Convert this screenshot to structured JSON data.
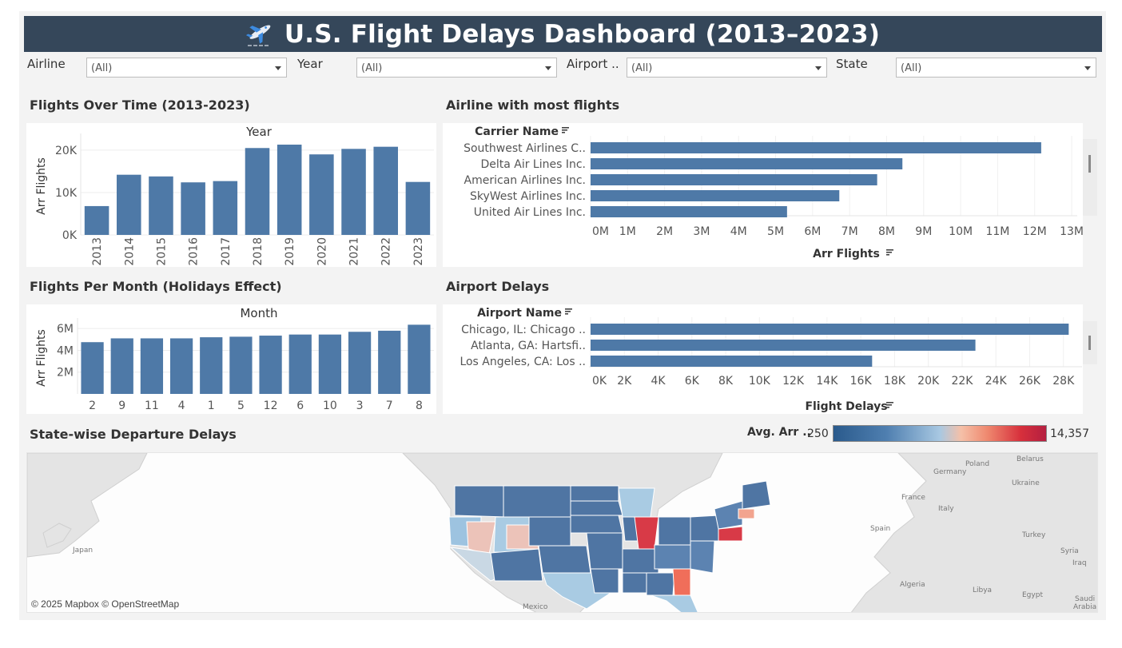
{
  "header": {
    "title": "U.S. Flight Delays Dashboard (2013–2023)",
    "icon": "airplane-icon"
  },
  "filters": [
    {
      "label": "Airline",
      "value": "(All)"
    },
    {
      "label": "Year",
      "value": "(All)"
    },
    {
      "label": "Airport ..",
      "value": "(All)"
    },
    {
      "label": "State",
      "value": "(All)"
    }
  ],
  "panels": {
    "flights_over_time": {
      "title": "Flights Over Time (2013-2023)"
    },
    "airline_most_flights": {
      "title": "Airline with most flights"
    },
    "flights_per_month": {
      "title": "Flights Per Month (Holidays Effect)"
    },
    "airport_delays": {
      "title": "Airport Delays"
    },
    "state_delays": {
      "title": "State-wise Departure Delays"
    }
  },
  "map": {
    "legend_label": "Avg. Arr ..",
    "legend_min": "250",
    "legend_max": "14,357",
    "attribution": "© 2025 Mapbox © OpenStreetMap",
    "places": [
      "Japan",
      "Mexico",
      "Poland",
      "Belarus",
      "Germany",
      "Ukraine",
      "France",
      "Italy",
      "Spain",
      "Turkey",
      "Syria",
      "Iraq",
      "Algeria",
      "Libya",
      "Egypt",
      "Saudi",
      "Arabia"
    ],
    "colors": {
      "low": "#2a5a8c",
      "mid": "#a8c8e2",
      "high": "#b41f40"
    }
  },
  "chart_data": [
    {
      "type": "bar",
      "title": "Year",
      "ylabel": "Arr Flights",
      "categories": [
        "2013",
        "2014",
        "2015",
        "2016",
        "2017",
        "2018",
        "2019",
        "2020",
        "2021",
        "2022",
        "2023"
      ],
      "values": [
        6800,
        14200,
        13800,
        12400,
        12700,
        20500,
        21300,
        19000,
        20300,
        20800,
        12500
      ],
      "ylim": [
        0,
        23000
      ],
      "yticks": [
        "0K",
        "10K",
        "20K"
      ],
      "ytick_values": [
        0,
        10000,
        20000
      ],
      "color": "#4e79a7"
    },
    {
      "type": "bar",
      "orientation": "horizontal",
      "category_title": "Carrier Name",
      "xlabel": "Arr Flights",
      "categories": [
        "Southwest Airlines C..",
        "Delta Air Lines Inc.",
        "American Airlines Inc.",
        "SkyWest Airlines Inc.",
        "United Air Lines Inc."
      ],
      "values": [
        12500000,
        8650000,
        7950000,
        6900000,
        5450000
      ],
      "xlim": [
        0,
        13500000
      ],
      "xticks": [
        "0M",
        "1M",
        "2M",
        "3M",
        "4M",
        "5M",
        "6M",
        "7M",
        "8M",
        "9M",
        "10M",
        "11M",
        "12M",
        "13M"
      ],
      "color": "#4e79a7"
    },
    {
      "type": "bar",
      "title": "Month",
      "ylabel": "Arr Flights",
      "categories": [
        "2",
        "9",
        "11",
        "4",
        "1",
        "5",
        "12",
        "6",
        "10",
        "3",
        "7",
        "8"
      ],
      "values": [
        4750000,
        5100000,
        5100000,
        5100000,
        5200000,
        5250000,
        5350000,
        5450000,
        5450000,
        5700000,
        5800000,
        6350000
      ],
      "ylim": [
        0,
        6600000
      ],
      "yticks": [
        "2M",
        "4M",
        "6M"
      ],
      "ytick_values": [
        2000000,
        4000000,
        6000000
      ],
      "color": "#4e79a7"
    },
    {
      "type": "bar",
      "orientation": "horizontal",
      "category_title": "Airport Name",
      "xlabel": "Flight Delays",
      "categories": [
        "Chicago, IL: Chicago ..",
        "Atlanta, GA: Hartsfi..",
        "Los Angeles, CA: Los .."
      ],
      "values": [
        28700,
        23100,
        16900
      ],
      "xlim": [
        0,
        29500
      ],
      "xticks": [
        "0K",
        "2K",
        "4K",
        "6K",
        "8K",
        "10K",
        "12K",
        "14K",
        "16K",
        "18K",
        "20K",
        "22K",
        "24K",
        "26K",
        "28K"
      ],
      "color": "#4e79a7"
    }
  ]
}
